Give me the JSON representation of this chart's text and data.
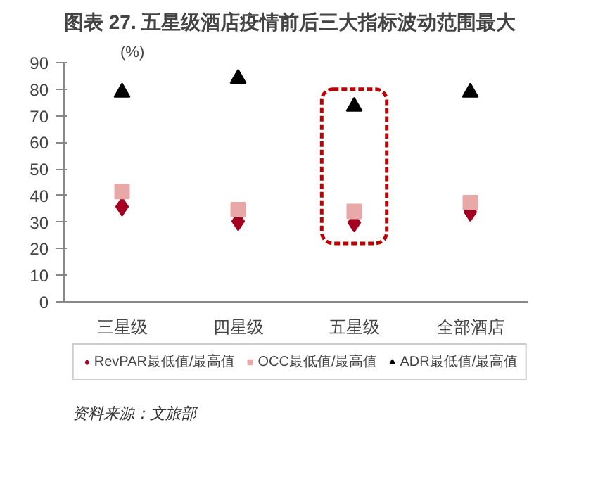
{
  "chart_data": {
    "type": "scatter",
    "title": "图表 27. 五星级酒店疫情前后三大指标波动范围最大",
    "ylabel": "(%)",
    "categories": [
      "三星级",
      "四星级",
      "五星级",
      "全部酒店"
    ],
    "series": [
      {
        "name": "RevPAR最低值/最高值",
        "color": "#a50021",
        "marker": "diamond",
        "values": [
          35.8,
          30.3,
          29.8,
          33.8
        ]
      },
      {
        "name": "OCC最低值/最高值",
        "color": "#e8a8a8",
        "marker": "square",
        "values": [
          41.5,
          34.7,
          34.0,
          37.3
        ]
      },
      {
        "name": "ADR最低值/最高值",
        "color": "#000000",
        "marker": "triangle",
        "values": [
          78.8,
          84.0,
          73.5,
          78.8
        ]
      }
    ],
    "ylim": [
      0,
      90
    ],
    "yticks": [
      0,
      10,
      20,
      30,
      40,
      50,
      60,
      70,
      80,
      90
    ],
    "grid": false,
    "legend": "bottom",
    "annotations": [
      "资料来源：文旅部"
    ]
  }
}
